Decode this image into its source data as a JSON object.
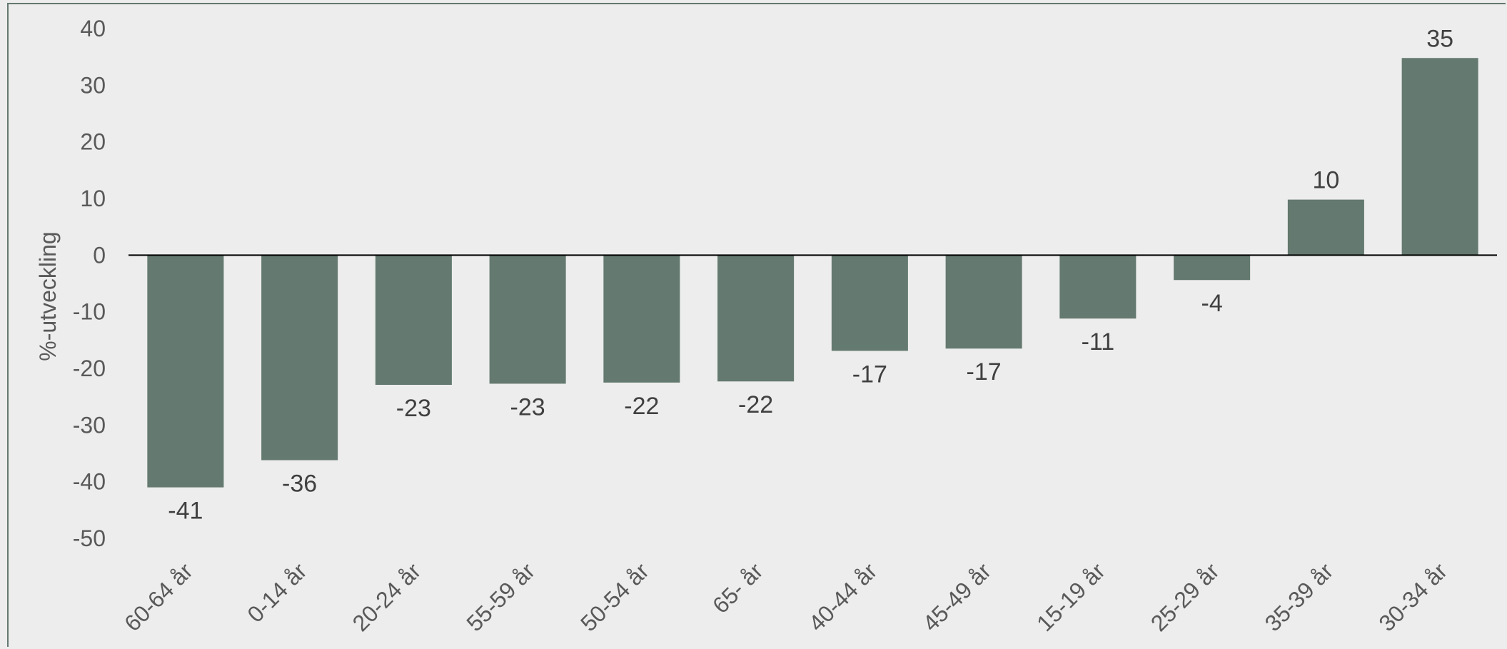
{
  "chart_data": {
    "type": "bar",
    "title": "",
    "xlabel": "",
    "ylabel": "%-utveckling",
    "ylim": [
      -50,
      40
    ],
    "yticks": [
      40,
      30,
      20,
      10,
      0,
      -10,
      -20,
      -30,
      -40,
      -50
    ],
    "grid": false,
    "legend": "none",
    "categories": [
      "60-64 år",
      "0-14 år",
      "20-24 år",
      "55-59 år",
      "50-54 år",
      "65- år",
      "40-44 år",
      "45-49 år",
      "15-19 år",
      "25-29 år",
      "35-39 år",
      "30-34 år"
    ],
    "values": [
      -41,
      -36,
      -23,
      -23,
      -22,
      -22,
      -17,
      -17,
      -11,
      -4,
      10,
      35
    ],
    "exact_values": [
      -41,
      -36.2,
      -22.9,
      -22.7,
      -22.5,
      -22.3,
      -16.9,
      -16.5,
      -11.2,
      -4.4,
      9.8,
      34.8
    ],
    "colors": {
      "bar": "#64796f",
      "frame": "#64796f",
      "background": "#ededed",
      "zero_line": "#000000"
    }
  }
}
